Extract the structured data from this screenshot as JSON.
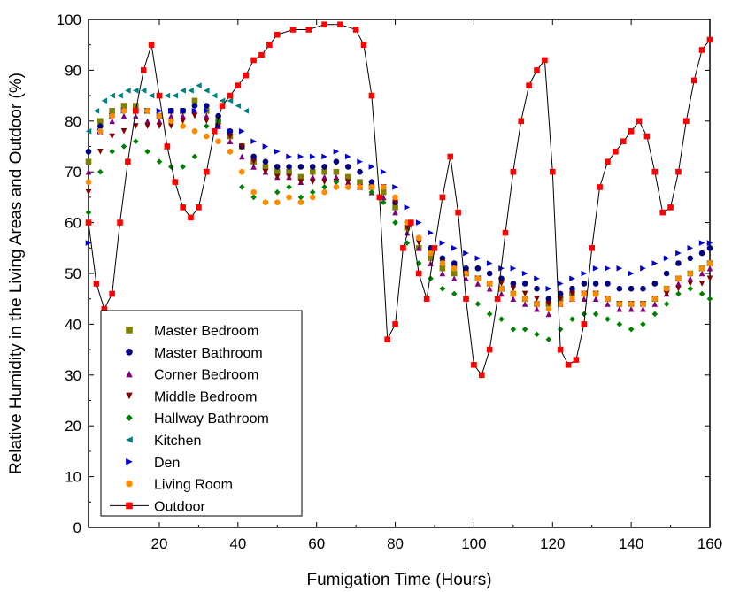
{
  "chart_data": {
    "type": "scatter",
    "xlabel": "Fumigation Time (Hours)",
    "ylabel": "Relative Humidity in the Living Areas and Outdoor (%)",
    "xlim": [
      2,
      160
    ],
    "ylim": [
      0,
      100
    ],
    "x_ticks": [
      20,
      40,
      60,
      80,
      100,
      120,
      140,
      160
    ],
    "y_ticks": [
      0,
      10,
      20,
      30,
      40,
      50,
      60,
      70,
      80,
      90,
      100
    ],
    "grid": false,
    "legend_position": "bottom-left",
    "series": [
      {
        "name": "Master Bedroom",
        "color": "#808000",
        "marker": "square",
        "x": [
          2,
          5,
          8,
          11,
          14,
          17,
          20,
          23,
          26,
          29,
          32,
          35,
          38,
          41,
          44,
          47,
          50,
          53,
          56,
          59,
          62,
          65,
          68,
          71,
          74,
          77,
          80,
          83,
          86,
          89,
          92,
          95,
          98,
          101,
          104,
          107,
          110,
          113,
          116,
          119,
          122,
          125,
          128,
          131,
          134,
          137,
          140,
          143,
          146,
          149,
          152,
          155,
          158,
          160
        ],
        "y": [
          72,
          80,
          82,
          83,
          83,
          82,
          81,
          82,
          82,
          84,
          82,
          80,
          77,
          75,
          72,
          71,
          70,
          70,
          69,
          70,
          70,
          70,
          69,
          68,
          67,
          66,
          63,
          59,
          55,
          53,
          51,
          50,
          50,
          49,
          48,
          47,
          46,
          45,
          44,
          44,
          45,
          46,
          46,
          46,
          45,
          44,
          44,
          44,
          45,
          47,
          49,
          50,
          51,
          52
        ]
      },
      {
        "name": "Master Bathroom",
        "color": "#000080",
        "marker": "circle",
        "x": [
          2,
          5,
          8,
          11,
          14,
          17,
          20,
          23,
          26,
          29,
          32,
          35,
          38,
          41,
          44,
          47,
          50,
          53,
          56,
          59,
          62,
          65,
          68,
          71,
          74,
          77,
          80,
          83,
          86,
          89,
          92,
          95,
          98,
          101,
          104,
          107,
          110,
          113,
          116,
          119,
          122,
          125,
          128,
          131,
          134,
          137,
          140,
          143,
          146,
          149,
          152,
          155,
          158,
          160
        ],
        "y": [
          74,
          79,
          81,
          82,
          82,
          82,
          81,
          82,
          82,
          83,
          83,
          81,
          78,
          75,
          73,
          72,
          71,
          71,
          71,
          71,
          71,
          72,
          71,
          70,
          68,
          67,
          64,
          60,
          57,
          55,
          53,
          52,
          51,
          51,
          50,
          49,
          48,
          48,
          47,
          45,
          46,
          47,
          48,
          48,
          48,
          47,
          47,
          47,
          48,
          50,
          52,
          53,
          54,
          55
        ]
      },
      {
        "name": "Corner Bedroom",
        "color": "#800080",
        "marker": "triangle-up",
        "x": [
          2,
          5,
          8,
          11,
          14,
          17,
          20,
          23,
          26,
          29,
          32,
          35,
          38,
          41,
          44,
          47,
          50,
          53,
          56,
          59,
          62,
          65,
          68,
          71,
          74,
          77,
          80,
          83,
          86,
          89,
          92,
          95,
          98,
          101,
          104,
          107,
          110,
          113,
          116,
          119,
          122,
          125,
          128,
          131,
          134,
          137,
          140,
          143,
          146,
          149,
          152,
          155,
          158,
          160
        ],
        "y": [
          70,
          78,
          80,
          81,
          81,
          80,
          80,
          81,
          81,
          82,
          81,
          79,
          76,
          73,
          71,
          70,
          69,
          69,
          68,
          69,
          69,
          69,
          68,
          67,
          66,
          65,
          62,
          58,
          55,
          52,
          50,
          49,
          49,
          48,
          47,
          46,
          45,
          44,
          43,
          42,
          44,
          45,
          45,
          45,
          44,
          43,
          43,
          43,
          44,
          46,
          48,
          49,
          50,
          51
        ]
      },
      {
        "name": "Middle Bedroom",
        "color": "#800000",
        "marker": "triangle-down",
        "x": [
          2,
          5,
          8,
          11,
          14,
          17,
          20,
          23,
          26,
          29,
          32,
          35,
          38,
          41,
          44,
          47,
          50,
          53,
          56,
          59,
          62,
          65,
          68,
          71,
          74,
          77,
          80,
          83,
          86,
          89,
          92,
          95,
          98,
          101,
          104,
          107,
          110,
          113,
          116,
          119,
          122,
          125,
          128,
          131,
          134,
          137,
          140,
          143,
          146,
          149,
          152,
          155,
          158,
          160
        ],
        "y": [
          66,
          74,
          77,
          78,
          79,
          79,
          79,
          79,
          80,
          81,
          80,
          79,
          77,
          75,
          72,
          70,
          69,
          69,
          68,
          68,
          68,
          68,
          68,
          67,
          67,
          67,
          64,
          59,
          56,
          54,
          52,
          51,
          50,
          49,
          48,
          48,
          47,
          46,
          45,
          44,
          45,
          46,
          46,
          46,
          45,
          44,
          44,
          44,
          45,
          46,
          47,
          48,
          48,
          49
        ]
      },
      {
        "name": "Hallway Bathroom",
        "color": "#008000",
        "marker": "diamond",
        "x": [
          2,
          5,
          8,
          11,
          14,
          17,
          20,
          23,
          26,
          29,
          32,
          35,
          38,
          41,
          44,
          47,
          50,
          53,
          56,
          59,
          62,
          65,
          68,
          71,
          74,
          77,
          80,
          83,
          86,
          89,
          92,
          95,
          98,
          101,
          104,
          107,
          110,
          113,
          116,
          119,
          122,
          125,
          128,
          131,
          134,
          137,
          140,
          143,
          146,
          149,
          152,
          155,
          158,
          160
        ],
        "y": [
          62,
          70,
          74,
          75,
          76,
          74,
          72,
          71,
          71,
          73,
          79,
          80,
          74,
          67,
          65,
          64,
          66,
          67,
          65,
          66,
          67,
          68,
          67,
          67,
          66,
          64,
          60,
          56,
          52,
          49,
          47,
          46,
          45,
          44,
          42,
          41,
          39,
          39,
          38,
          37,
          39,
          41,
          42,
          42,
          41,
          40,
          39,
          40,
          42,
          44,
          46,
          47,
          46,
          45
        ]
      },
      {
        "name": "Kitchen",
        "color": "#008080",
        "marker": "triangle-left",
        "x": [
          2,
          4,
          6,
          8,
          10,
          12,
          14,
          16,
          18,
          20,
          22,
          24,
          26,
          28,
          30,
          32,
          34,
          36,
          38,
          40,
          42
        ],
        "y": [
          78,
          82,
          84,
          85,
          85,
          86,
          86,
          86,
          85,
          85,
          85,
          85,
          86,
          86,
          87,
          86,
          85,
          84,
          84,
          83,
          82
        ]
      },
      {
        "name": "Den",
        "color": "#0000CC",
        "marker": "triangle-right",
        "x": [
          2,
          5,
          8,
          11,
          14,
          17,
          20,
          23,
          26,
          29,
          32,
          35,
          38,
          41,
          44,
          47,
          50,
          53,
          56,
          59,
          62,
          65,
          68,
          71,
          74,
          77,
          80,
          83,
          86,
          89,
          92,
          95,
          98,
          101,
          104,
          107,
          110,
          113,
          116,
          119,
          122,
          125,
          128,
          131,
          134,
          137,
          140,
          143,
          146,
          149,
          152,
          155,
          158,
          160
        ],
        "y": [
          56,
          78,
          81,
          82,
          82,
          82,
          82,
          82,
          82,
          82,
          82,
          79,
          78,
          78,
          76,
          75,
          74,
          73,
          73,
          73,
          73,
          74,
          73,
          72,
          71,
          70,
          67,
          63,
          60,
          58,
          56,
          55,
          54,
          53,
          52,
          51,
          51,
          50,
          49,
          47,
          48,
          49,
          50,
          51,
          51,
          51,
          50,
          51,
          52,
          53,
          54,
          55,
          56,
          56
        ]
      },
      {
        "name": "Living Room",
        "color": "#FF8C00",
        "marker": "circle",
        "x": [
          2,
          5,
          8,
          11,
          14,
          17,
          20,
          23,
          26,
          29,
          32,
          35,
          38,
          41,
          44,
          47,
          50,
          53,
          56,
          59,
          62,
          65,
          68,
          71,
          74,
          77,
          80,
          83,
          86,
          89,
          92,
          95,
          98,
          101,
          104,
          107,
          110,
          113,
          116,
          119,
          122,
          125,
          128,
          131,
          134,
          137,
          140,
          143,
          146,
          149,
          152,
          155,
          158,
          160
        ],
        "y": [
          68,
          78,
          81,
          82,
          82,
          82,
          81,
          80,
          79,
          78,
          77,
          76,
          74,
          70,
          66,
          64,
          64,
          65,
          64,
          65,
          66,
          67,
          67,
          67,
          67,
          67,
          65,
          60,
          57,
          54,
          52,
          51,
          50,
          49,
          48,
          47,
          46,
          45,
          44,
          43,
          44,
          45,
          46,
          46,
          45,
          44,
          44,
          44,
          45,
          47,
          49,
          50,
          51,
          52
        ]
      },
      {
        "name": "Outdoor",
        "color": "#FF0000",
        "marker": "square",
        "line": true,
        "x": [
          2,
          4,
          6,
          8,
          10,
          12,
          14,
          16,
          18,
          20,
          22,
          24,
          26,
          28,
          30,
          32,
          34,
          36,
          38,
          40,
          42,
          44,
          46,
          48,
          50,
          54,
          58,
          62,
          66,
          70,
          72,
          74,
          76,
          78,
          80,
          82,
          84,
          86,
          88,
          90,
          92,
          94,
          96,
          98,
          100,
          102,
          104,
          106,
          108,
          110,
          112,
          114,
          116,
          118,
          120,
          122,
          124,
          126,
          128,
          130,
          132,
          134,
          136,
          138,
          140,
          142,
          144,
          146,
          148,
          150,
          152,
          154,
          156,
          158,
          160
        ],
        "y": [
          60,
          48,
          43,
          46,
          60,
          72,
          82,
          90,
          95,
          85,
          75,
          68,
          63,
          61,
          63,
          70,
          78,
          83,
          85,
          87,
          89,
          92,
          93,
          95,
          97,
          98,
          98,
          99,
          99,
          98,
          95,
          85,
          65,
          37,
          40,
          55,
          60,
          50,
          45,
          55,
          65,
          73,
          62,
          45,
          32,
          30,
          35,
          45,
          58,
          70,
          80,
          87,
          90,
          92,
          70,
          35,
          32,
          33,
          40,
          55,
          67,
          72,
          74,
          76,
          78,
          80,
          77,
          70,
          62,
          63,
          70,
          80,
          88,
          94,
          96
        ]
      }
    ]
  }
}
